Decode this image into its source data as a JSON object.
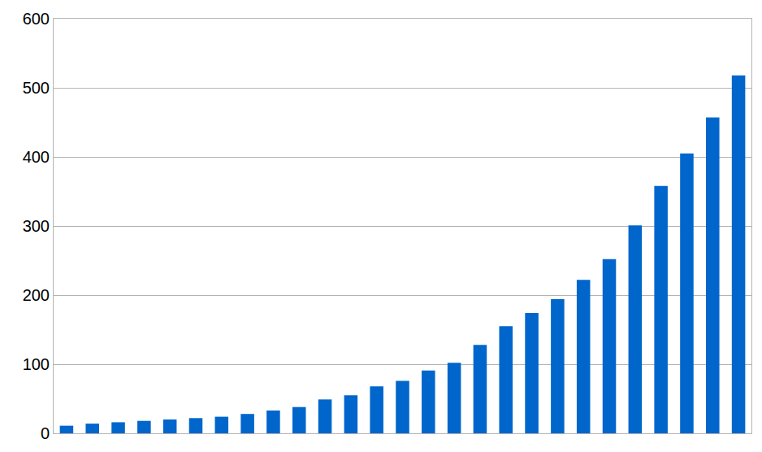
{
  "chart_data": {
    "type": "bar",
    "categories": [
      null,
      null,
      null,
      null,
      null,
      null,
      null,
      null,
      null,
      null,
      null,
      null,
      null,
      null,
      null,
      null,
      null,
      null,
      null,
      null,
      null,
      null,
      null,
      null,
      null,
      null,
      null
    ],
    "values": [
      11,
      14,
      16,
      18,
      20,
      22,
      24,
      28,
      33,
      38,
      49,
      55,
      68,
      76,
      91,
      102,
      128,
      155,
      174,
      194,
      222,
      252,
      301,
      358,
      405,
      457,
      518
    ],
    "color": "#0066cc",
    "ylim": [
      0,
      600
    ],
    "yticks": [
      0,
      100,
      200,
      300,
      400,
      500,
      600
    ],
    "grid": true,
    "tick_labels": "y"
  }
}
